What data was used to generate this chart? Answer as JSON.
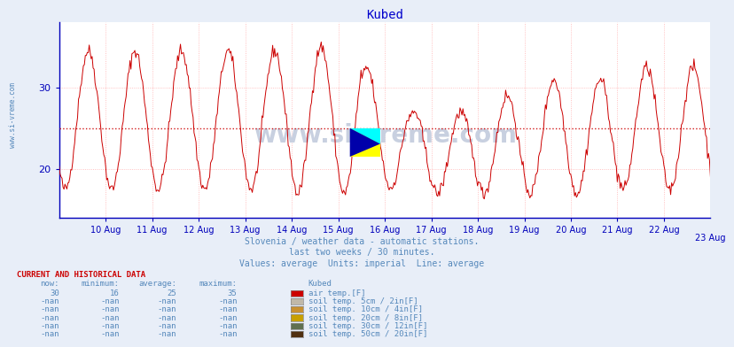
{
  "title": "Kubed",
  "title_color": "#0000cc",
  "title_fontsize": 10,
  "bg_color": "#e8eef8",
  "plot_bg_color": "#ffffff",
  "grid_color": "#ffb0b0",
  "axis_color": "#0000bb",
  "line_color": "#cc0000",
  "avg_line_color": "#cc0000",
  "avg_value": 25,
  "ylim": [
    14,
    38
  ],
  "yticks": [
    20,
    30
  ],
  "watermark_text": "www.si-vreme.com",
  "watermark_color": "#c8d0e0",
  "subtitle1": "Slovenia / weather data - automatic stations.",
  "subtitle2": "last two weeks / 30 minutes.",
  "subtitle3": "Values: average  Units: imperial  Line: average",
  "subtitle_color": "#5588bb",
  "sidebar_text": "www.si-vreme.com",
  "sidebar_color": "#5588bb",
  "table_header_color": "#cc0000",
  "table_label_color": "#5588bb",
  "now": 30,
  "minimum": 16,
  "average": 25,
  "maximum": 35,
  "legend_entries": [
    {
      "label": "air temp.[F]",
      "color": "#cc0000"
    },
    {
      "label": "soil temp. 5cm / 2in[F]",
      "color": "#c0b8a8"
    },
    {
      "label": "soil temp. 10cm / 4in[F]",
      "color": "#c89030"
    },
    {
      "label": "soil temp. 20cm / 8in[F]",
      "color": "#c8a000"
    },
    {
      "label": "soil temp. 30cm / 12in[F]",
      "color": "#607050"
    },
    {
      "label": "soil temp. 50cm / 20in[F]",
      "color": "#503010"
    }
  ],
  "xticklabels": [
    "10 Aug",
    "11 Aug",
    "12 Aug",
    "13 Aug",
    "14 Aug",
    "15 Aug",
    "16 Aug",
    "17 Aug",
    "18 Aug",
    "19 Aug",
    "20 Aug",
    "21 Aug",
    "22 Aug",
    "23 Aug"
  ],
  "num_points": 672
}
